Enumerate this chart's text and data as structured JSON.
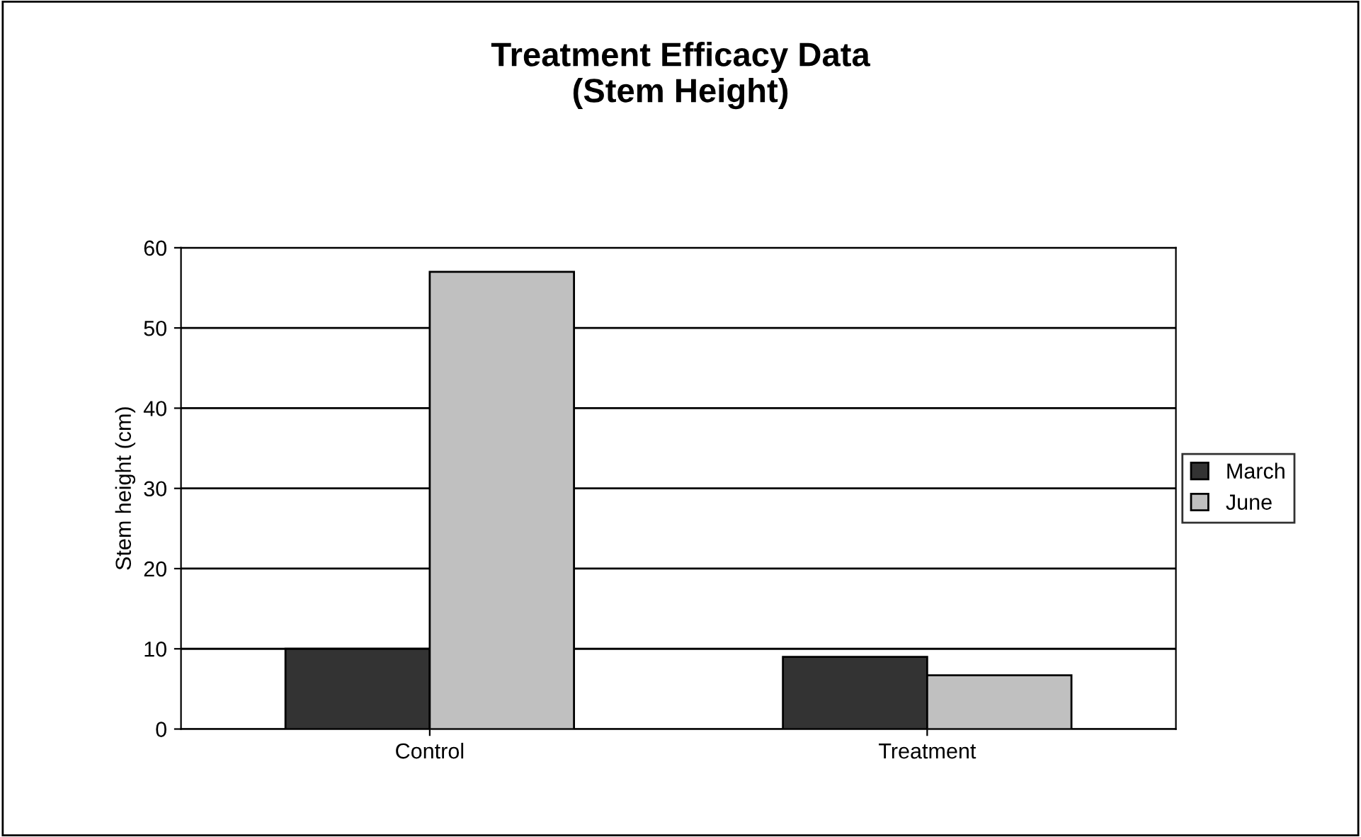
{
  "chart_data": {
    "type": "bar",
    "title": "Treatment Efficacy Data\n(Stem Height)",
    "ylabel": "Stem height (cm)",
    "categories": [
      "Control",
      "Treatment"
    ],
    "series": [
      {
        "name": "March",
        "color": "#333333",
        "values": [
          10,
          9
        ]
      },
      {
        "name": "June",
        "color": "#c0c0c0",
        "values": [
          57,
          6.7
        ]
      }
    ],
    "ylim": [
      0,
      60
    ],
    "yticks": [
      0,
      10,
      20,
      30,
      40,
      50,
      60
    ],
    "grid": "y",
    "legend": "right"
  }
}
